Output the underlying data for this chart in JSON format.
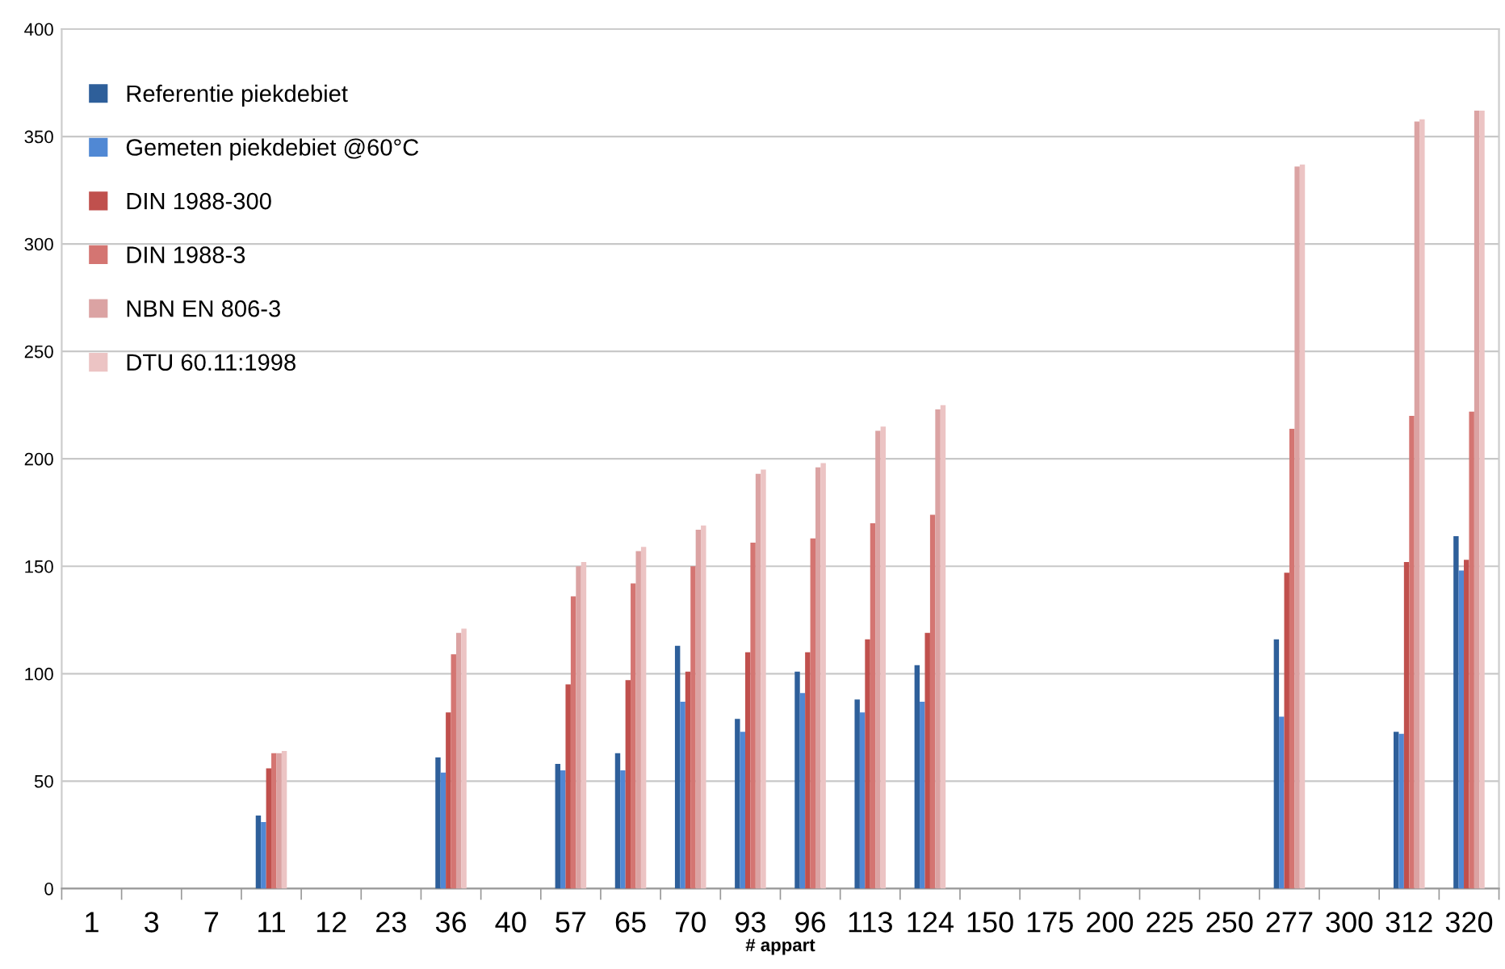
{
  "chart_data": {
    "type": "bar",
    "xlabel": "# appart",
    "categories": [
      "1",
      "3",
      "7",
      "11",
      "12",
      "23",
      "36",
      "40",
      "57",
      "65",
      "70",
      "93",
      "96",
      "113",
      "124",
      "150",
      "175",
      "200",
      "225",
      "250",
      "277",
      "300",
      "312",
      "320"
    ],
    "series": [
      {
        "name": "Referentie piekdebiet",
        "color": "#2e5f9a",
        "values": [
          null,
          null,
          null,
          34,
          null,
          null,
          61,
          null,
          58,
          63,
          113,
          79,
          101,
          88,
          104,
          null,
          null,
          null,
          null,
          null,
          116,
          null,
          73,
          164
        ]
      },
      {
        "name": "Gemeten piekdebiet @60°C",
        "color": "#5088d4",
        "values": [
          null,
          null,
          null,
          31,
          null,
          null,
          54,
          null,
          55,
          55,
          87,
          73,
          91,
          82,
          87,
          null,
          null,
          null,
          null,
          null,
          80,
          null,
          72,
          148
        ]
      },
      {
        "name": "DIN 1988-300",
        "color": "#c0504d",
        "values": [
          null,
          null,
          null,
          56,
          null,
          null,
          82,
          null,
          95,
          97,
          101,
          110,
          110,
          116,
          119,
          null,
          null,
          null,
          null,
          null,
          147,
          null,
          152,
          153
        ]
      },
      {
        "name": "DIN 1988-3",
        "color": "#d47572",
        "values": [
          null,
          null,
          null,
          63,
          null,
          null,
          109,
          null,
          136,
          142,
          150,
          161,
          163,
          170,
          174,
          null,
          null,
          null,
          null,
          null,
          214,
          null,
          220,
          222
        ]
      },
      {
        "name": "NBN EN 806-3",
        "color": "#dba3a3",
        "values": [
          null,
          null,
          null,
          63,
          null,
          null,
          119,
          null,
          150,
          157,
          167,
          193,
          196,
          213,
          223,
          null,
          null,
          null,
          null,
          null,
          336,
          null,
          357,
          362
        ]
      },
      {
        "name": "DTU 60.11:1998",
        "color": "#ecc4c4",
        "values": [
          null,
          null,
          null,
          64,
          null,
          null,
          121,
          null,
          152,
          159,
          169,
          195,
          198,
          215,
          225,
          null,
          null,
          null,
          null,
          null,
          337,
          null,
          358,
          362
        ]
      }
    ],
    "ylim": [
      0,
      400
    ],
    "yticks": [
      0,
      50,
      100,
      150,
      200,
      250,
      300,
      350,
      400
    ],
    "grid": "y",
    "legend": "top left"
  }
}
